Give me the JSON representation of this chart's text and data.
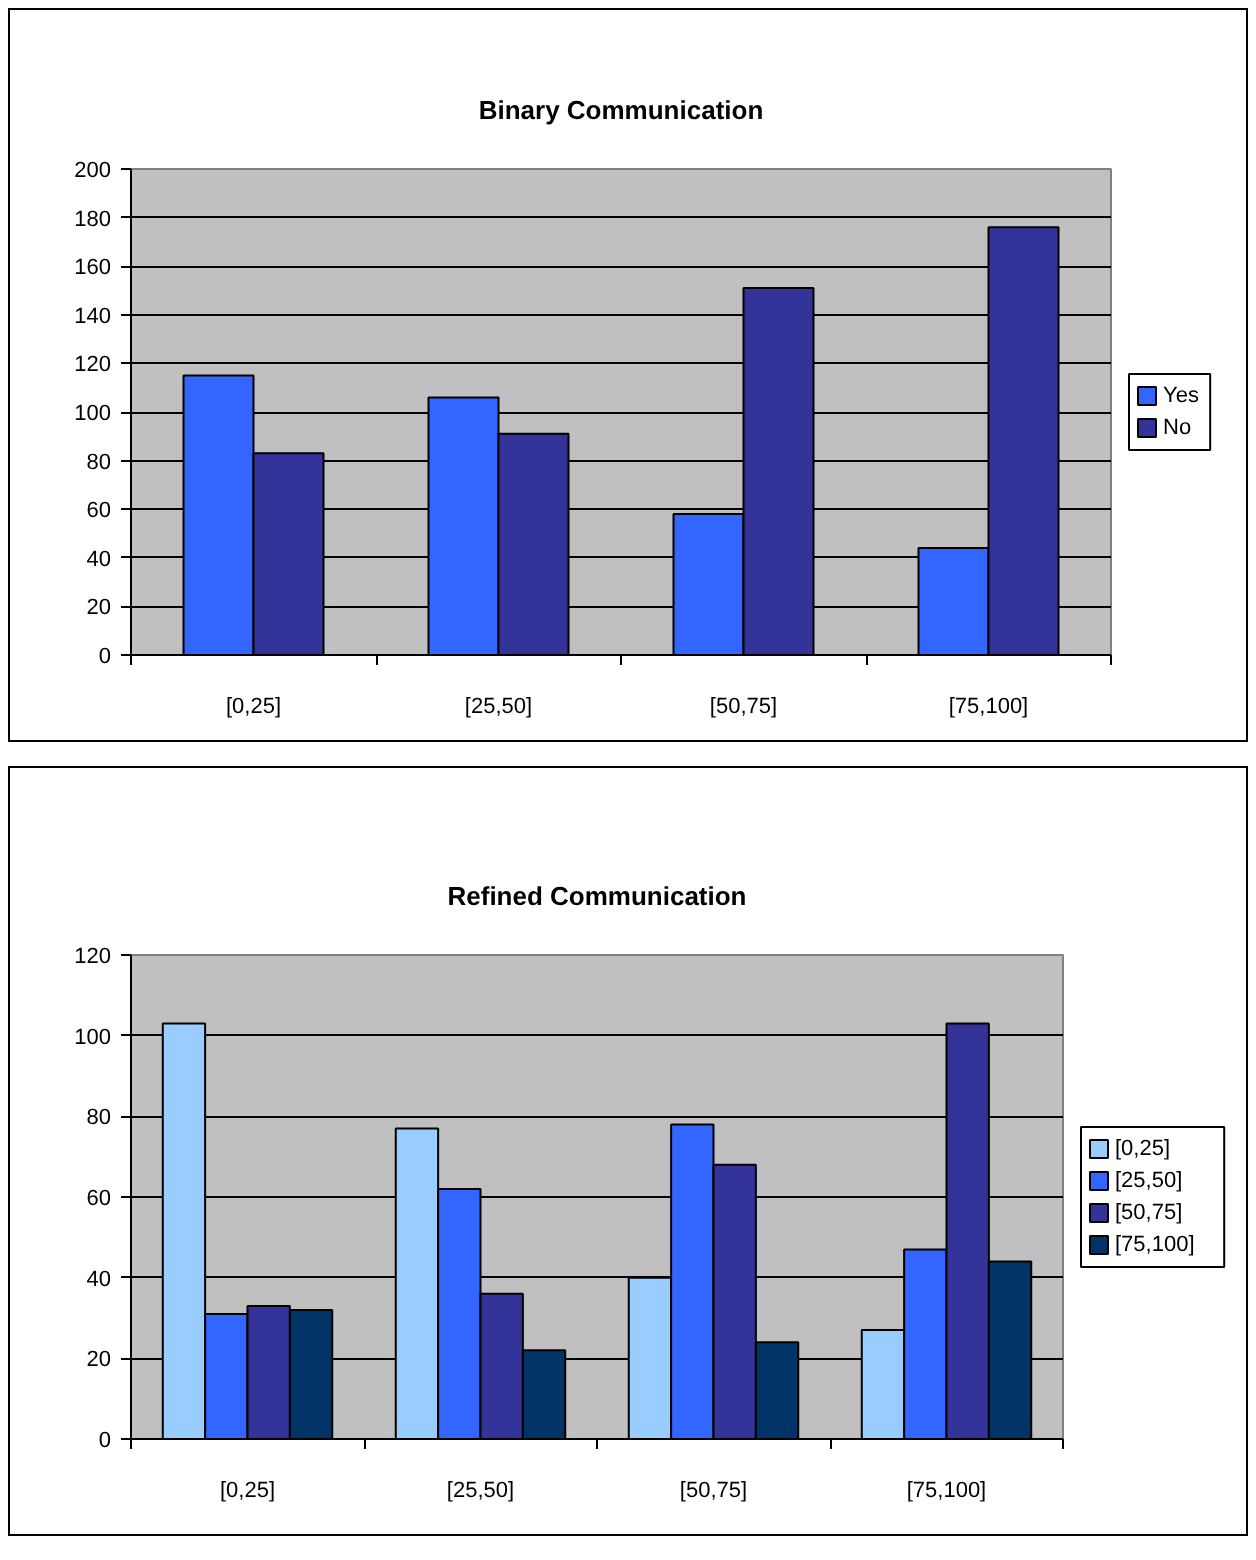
{
  "chart_data": [
    {
      "type": "bar",
      "title": "Binary Communication",
      "categories": [
        "[0,25]",
        "[25,50]",
        "[50,75]",
        "[75,100]"
      ],
      "series": [
        {
          "name": "Yes",
          "color": "#3366ff",
          "values": [
            115,
            106,
            58,
            44
          ]
        },
        {
          "name": "No",
          "color": "#333399",
          "values": [
            83,
            91,
            151,
            176
          ]
        }
      ],
      "ylim": [
        0,
        200
      ],
      "yticks": [
        0,
        20,
        40,
        60,
        80,
        100,
        120,
        140,
        160,
        180,
        200
      ],
      "grid": "y",
      "legend": "right"
    },
    {
      "type": "bar",
      "title": "Refined Communication",
      "categories": [
        "[0,25]",
        "[25,50]",
        "[50,75]",
        "[75,100]"
      ],
      "series": [
        {
          "name": "[0,25]",
          "color": "#99ccff",
          "values": [
            103,
            77,
            40,
            27
          ]
        },
        {
          "name": "[25,50]",
          "color": "#3366ff",
          "values": [
            31,
            62,
            78,
            47
          ]
        },
        {
          "name": "[50,75]",
          "color": "#333399",
          "values": [
            33,
            36,
            68,
            103
          ]
        },
        {
          "name": "[75,100]",
          "color": "#003366",
          "values": [
            32,
            22,
            24,
            44
          ]
        }
      ],
      "ylim": [
        0,
        120
      ],
      "yticks": [
        0,
        20,
        40,
        60,
        80,
        100,
        120
      ],
      "grid": "y",
      "legend": "right"
    }
  ]
}
